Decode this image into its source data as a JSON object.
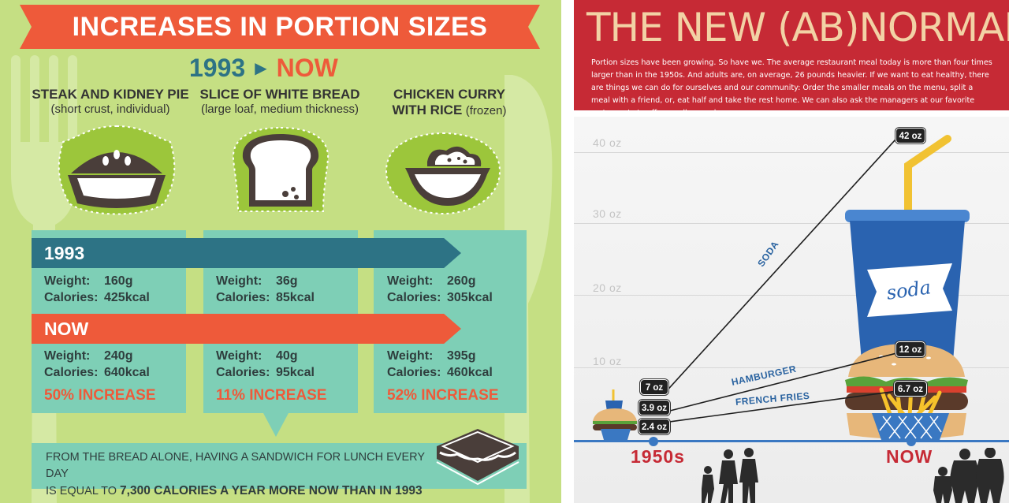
{
  "left": {
    "title": "INCREASES IN PORTION SIZES",
    "year_from": "1993",
    "year_to": "NOW",
    "foods": [
      {
        "name": "STEAK AND KIDNEY PIE",
        "sub": "(short crust, individual)",
        "icon": "pie-icon"
      },
      {
        "name": "SLICE OF WHITE BREAD",
        "sub": "(large loaf, medium thickness)",
        "icon": "bread-icon"
      },
      {
        "name_line1": "CHICKEN CURRY",
        "name_line2": "WITH RICE",
        "sub": "(frozen)",
        "icon": "bowl-icon"
      }
    ],
    "band_1993": "1993",
    "band_now": "NOW",
    "weight_label": "Weight:",
    "calories_label": "Calories:",
    "rows_1993": [
      {
        "weight": "160g",
        "calories": "425kcal"
      },
      {
        "weight": "36g",
        "calories": "85kcal"
      },
      {
        "weight": "260g",
        "calories": "305kcal"
      }
    ],
    "rows_now": [
      {
        "weight": "240g",
        "calories": "640kcal",
        "increase": "50% INCREASE"
      },
      {
        "weight": "40g",
        "calories": "95kcal",
        "increase": "11% INCREASE"
      },
      {
        "weight": "395g",
        "calories": "460kcal",
        "increase": "52% INCREASE"
      }
    ],
    "note_line1": "FROM THE BREAD ALONE, HAVING A SANDWICH FOR LUNCH EVERY DAY",
    "note_line2_prefix": "IS EQUAL TO ",
    "note_line2_bold": "7,300 CALORIES A YEAR MORE NOW THAN IN 1993",
    "colors": {
      "bg": "#c5df83",
      "teal": "#2d7385",
      "orange": "#ee5a3a",
      "mint": "#7ecfb6"
    }
  },
  "right": {
    "title": "THE NEW (AB)NORMAL",
    "paragraph": "Portion sizes have been growing. So have we. The average restaurant meal today is more than four times larger than in the 1950s. And adults are, on average, 26 pounds heavier. If we want to eat healthy, there are things we can do for ourselves and our community: Order the smaller meals on the menu, split a meal with a friend, or, eat half and take the rest home. We can also ask the managers at our favorite restaurants to offer smaller meals.",
    "grid_labels": [
      "40 oz",
      "30 oz",
      "20 oz",
      "10 oz"
    ],
    "soda_label": "SODA",
    "hamburger_label": "HAMBURGER",
    "fries_label": "FRENCH FRIES",
    "cup_label": "soda",
    "era_from": "1950s",
    "era_to": "NOW",
    "colors": {
      "header": "#c62a35",
      "title": "#f2d2a5",
      "axis": "#3a78c2",
      "cup": "#2a63b0"
    }
  },
  "chart_data": {
    "type": "line",
    "ylim": [
      0,
      45
    ],
    "x": [
      "1950s",
      "NOW"
    ],
    "series": [
      {
        "name": "SODA",
        "values": [
          7,
          42
        ],
        "labels": [
          "7 oz",
          "42 oz"
        ]
      },
      {
        "name": "HAMBURGER",
        "values": [
          3.9,
          12
        ],
        "labels": [
          "3.9 oz",
          "12 oz"
        ]
      },
      {
        "name": "FRENCH FRIES",
        "values": [
          2.4,
          6.7
        ],
        "labels": [
          "2.4 oz",
          "6.7 oz"
        ]
      }
    ]
  }
}
